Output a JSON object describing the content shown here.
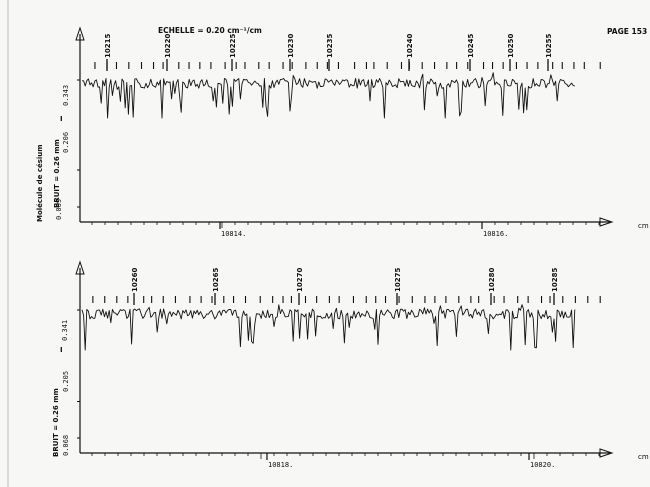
{
  "header": {
    "echelle": "ECHELLE = 0.20 cm⁻¹/cm",
    "page": "PAGE 153"
  },
  "sidebar": {
    "molecule": "Molécule de césium"
  },
  "chart_data": [
    {
      "type": "line",
      "title": "",
      "bruit": "BRUIT = 0.26 mm",
      "y_tick_labels": [
        "0.069",
        "0.206",
        "0.343"
      ],
      "y_marker": "I",
      "x_unit": "cm",
      "x_ticks": [
        "10814.",
        "10816."
      ],
      "line_numbers": [
        "10215",
        "10220",
        "10225",
        "10230",
        "10235",
        "10240",
        "10245",
        "10250",
        "10255"
      ],
      "grid": false
    },
    {
      "type": "line",
      "title": "",
      "bruit": "BRUIT = 0.26 mm",
      "y_tick_labels": [
        "0.068",
        "0.205",
        "0.341"
      ],
      "y_marker": "I",
      "x_unit": "cm",
      "x_ticks": [
        "10818.",
        "10820."
      ],
      "line_numbers": [
        "10260",
        "10265",
        "10270",
        "10275",
        "10280",
        "10285"
      ],
      "grid": false
    }
  ]
}
